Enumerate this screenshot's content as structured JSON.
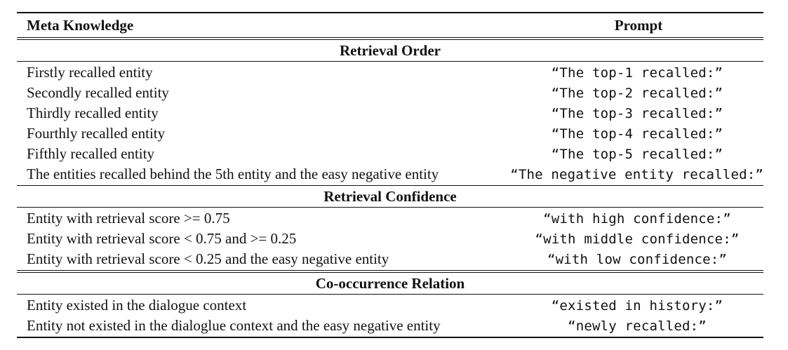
{
  "table": {
    "headers": {
      "left": "Meta Knowledge",
      "right": "Prompt"
    },
    "sections": [
      {
        "title": "Retrieval Order",
        "rows": [
          {
            "knowledge": "Firstly recalled entity",
            "prompt": "“The top-1 recalled:”"
          },
          {
            "knowledge": "Secondly recalled entity",
            "prompt": "“The top-2 recalled:”"
          },
          {
            "knowledge": "Thirdly recalled entity",
            "prompt": "“The top-3 recalled:”"
          },
          {
            "knowledge": "Fourthly recalled entity",
            "prompt": "“The top-4 recalled:”"
          },
          {
            "knowledge": "Fifthly recalled entity",
            "prompt": "“The top-5 recalled:”"
          },
          {
            "knowledge": "The entities recalled behind the 5th entity and the easy negative entity",
            "prompt": "“The negative entity recalled:”"
          }
        ]
      },
      {
        "title": "Retrieval Confidence",
        "rows": [
          {
            "knowledge": "Entity with retrieval score >= 0.75",
            "prompt": "“with high confidence:”"
          },
          {
            "knowledge": "Entity with retrieval score < 0.75 and >= 0.25",
            "prompt": "“with middle confidence:”"
          },
          {
            "knowledge": "Entity with retrieval score < 0.25 and the easy negative entity",
            "prompt": "“with low confidence:”"
          }
        ]
      },
      {
        "title": "Co-occurrence Relation",
        "rows": [
          {
            "knowledge": "Entity existed in the dialogue context",
            "prompt": "“existed in history:”"
          },
          {
            "knowledge": "Entity not existed in the dialoglue context and the easy negative entity",
            "prompt": "“newly recalled:”"
          }
        ]
      }
    ]
  }
}
